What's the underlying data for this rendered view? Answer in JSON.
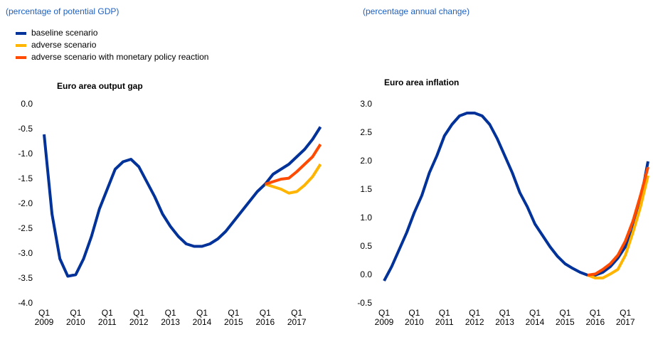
{
  "chart_data": [
    {
      "type": "line",
      "subtitle": "(percentage of potential GDP)",
      "title": "Euro area output gap",
      "categories": [
        "Q1\n2009",
        null,
        null,
        null,
        "Q1\n2010",
        null,
        null,
        null,
        "Q1\n2011",
        null,
        null,
        null,
        "Q1\n2012",
        null,
        null,
        null,
        "Q1\n2013",
        null,
        null,
        null,
        "Q1\n2014",
        null,
        null,
        null,
        "Q1\n2015",
        null,
        null,
        null,
        "Q1\n2016",
        null,
        null,
        null,
        "Q1\n2017",
        null,
        null,
        null
      ],
      "ylim": [
        -4,
        0
      ],
      "yticks": [
        {
          "value": -4,
          "label": "-4.0"
        },
        -3.5,
        {
          "value": -3,
          "label": "-3.0"
        },
        -2.5,
        {
          "value": -2,
          "label": "-2.0"
        },
        -1.5,
        {
          "value": -1,
          "label": "-1.0"
        },
        -0.5,
        {
          "value": 0,
          "label": "0.0"
        }
      ],
      "series": [
        {
          "name": "baseline scenario",
          "color": "#003299",
          "values": [
            -0.6,
            -2.2,
            -3.1,
            -3.45,
            -3.42,
            -3.1,
            -2.65,
            -2.1,
            -1.7,
            -1.3,
            -1.15,
            -1.1,
            -1.25,
            -1.55,
            -1.85,
            -2.2,
            -2.45,
            -2.65,
            -2.8,
            -2.85,
            -2.85,
            -2.8,
            -2.7,
            -2.55,
            -2.35,
            -2.15,
            -1.95,
            -1.75,
            -1.6,
            -1.4,
            -1.3,
            -1.2,
            -1.05,
            -0.9,
            -0.7,
            -0.45
          ]
        },
        {
          "name": "adverse scenario",
          "color": "#ffb400",
          "values": [
            null,
            null,
            null,
            null,
            null,
            null,
            null,
            null,
            null,
            null,
            null,
            null,
            null,
            null,
            null,
            null,
            null,
            null,
            null,
            null,
            null,
            null,
            null,
            null,
            null,
            null,
            null,
            null,
            -1.6,
            -1.65,
            -1.7,
            -1.78,
            -1.75,
            -1.62,
            -1.45,
            -1.2
          ]
        },
        {
          "name": "adverse scenario with monetary policy reaction",
          "color": "#ff4b00",
          "values": [
            null,
            null,
            null,
            null,
            null,
            null,
            null,
            null,
            null,
            null,
            null,
            null,
            null,
            null,
            null,
            null,
            null,
            null,
            null,
            null,
            null,
            null,
            null,
            null,
            null,
            null,
            null,
            null,
            -1.6,
            -1.55,
            -1.5,
            -1.48,
            -1.35,
            -1.2,
            -1.05,
            -0.8
          ]
        }
      ]
    },
    {
      "type": "line",
      "subtitle": "(percentage annual change)",
      "title": "Euro area inflation",
      "categories": [
        "Q1\n2009",
        null,
        null,
        null,
        "Q1\n2010",
        null,
        null,
        null,
        "Q1\n2011",
        null,
        null,
        null,
        "Q1\n2012",
        null,
        null,
        null,
        "Q1\n2013",
        null,
        null,
        null,
        "Q1\n2014",
        null,
        null,
        null,
        "Q1\n2015",
        null,
        null,
        null,
        "Q1\n2016",
        null,
        null,
        null,
        "Q1\n2017",
        null,
        null,
        null
      ],
      "ylim": [
        -0.5,
        3
      ],
      "yticks": [
        -0.5,
        {
          "value": 0,
          "label": "0.0"
        },
        0.5,
        {
          "value": 1,
          "label": "1.0"
        },
        1.5,
        {
          "value": 2,
          "label": "2.0"
        },
        2.5,
        {
          "value": 3,
          "label": "3.0"
        }
      ],
      "series": [
        {
          "color": "#003299",
          "values": [
            -0.1,
            0.15,
            0.45,
            0.75,
            1.1,
            1.4,
            1.8,
            2.1,
            2.45,
            2.65,
            2.8,
            2.85,
            2.85,
            2.8,
            2.65,
            2.4,
            2.1,
            1.8,
            1.45,
            1.2,
            0.9,
            0.7,
            0.5,
            0.33,
            0.2,
            0.12,
            0.05,
            0,
            0,
            0.05,
            0.15,
            0.3,
            0.5,
            0.8,
            1.3,
            2.0
          ]
        },
        {
          "color": "#ffb400",
          "values": [
            null,
            null,
            null,
            null,
            null,
            null,
            null,
            null,
            null,
            null,
            null,
            null,
            null,
            null,
            null,
            null,
            null,
            null,
            null,
            null,
            null,
            null,
            null,
            null,
            null,
            null,
            null,
            0,
            -0.05,
            -0.05,
            0.02,
            0.1,
            0.35,
            0.75,
            1.2,
            1.75
          ]
        },
        {
          "color": "#ff4b00",
          "values": [
            null,
            null,
            null,
            null,
            null,
            null,
            null,
            null,
            null,
            null,
            null,
            null,
            null,
            null,
            null,
            null,
            null,
            null,
            null,
            null,
            null,
            null,
            null,
            null,
            null,
            null,
            null,
            0,
            0.02,
            0.1,
            0.2,
            0.35,
            0.6,
            0.95,
            1.4,
            1.9
          ]
        }
      ]
    }
  ]
}
